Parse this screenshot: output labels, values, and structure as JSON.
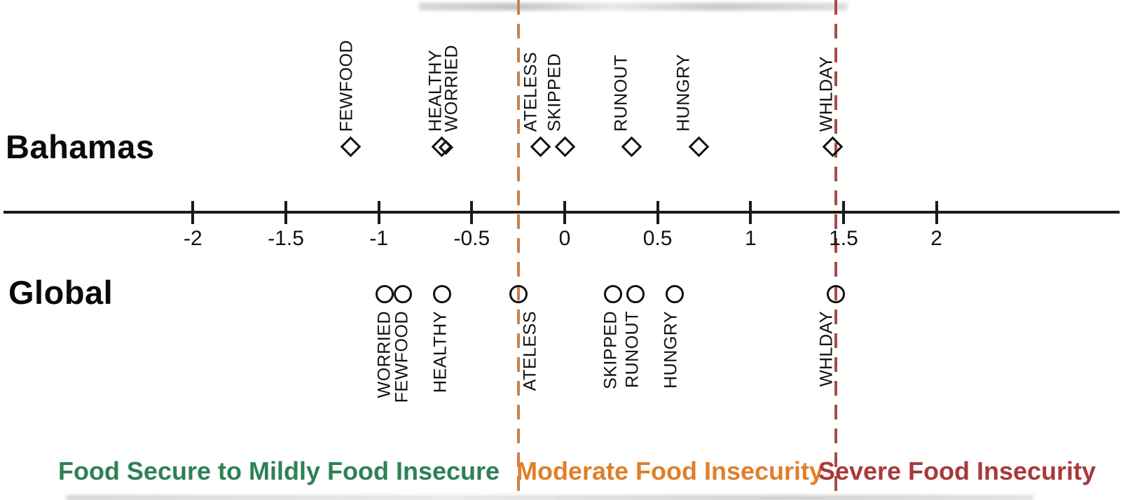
{
  "rows": {
    "bahamas": {
      "label": "Bahamas"
    },
    "global": {
      "label": "Global"
    }
  },
  "axis": {
    "min": -3,
    "max": 3,
    "ticks": [
      {
        "value": -2,
        "label": "-2"
      },
      {
        "value": -1.5,
        "label": "-1.5"
      },
      {
        "value": -1,
        "label": "-1"
      },
      {
        "value": -0.5,
        "label": "-0.5"
      },
      {
        "value": 0,
        "label": "0"
      },
      {
        "value": 0.5,
        "label": "0.5"
      },
      {
        "value": 1,
        "label": "1"
      },
      {
        "value": 1.5,
        "label": "1.5"
      },
      {
        "value": 2,
        "label": "2"
      }
    ]
  },
  "thresholds": {
    "moderate": {
      "value": -0.25,
      "color": "#C8824F"
    },
    "severe": {
      "value": 1.46,
      "color": "#A84A45"
    }
  },
  "zones": [
    {
      "label": "Food Secure to Mildly Food Insecure",
      "color": "#2E8155"
    },
    {
      "label": "Moderate Food Insecurity",
      "color": "#E07F2A"
    },
    {
      "label": "Severe Food Insecurity",
      "color": "#A8393B"
    }
  ],
  "chart_data": {
    "type": "scatter",
    "xlim": [
      -3,
      3
    ],
    "grid": false,
    "threshold_lines": [
      {
        "value": -0.25,
        "style": "dashed",
        "color": "#C8824F"
      },
      {
        "value": 1.46,
        "style": "dashed",
        "color": "#A84A45"
      }
    ],
    "series": [
      {
        "name": "Bahamas",
        "marker": "diamond",
        "points": [
          {
            "item": "FEWFOOD",
            "value": -1.15
          },
          {
            "item": "HEALTHY",
            "value": -0.66
          },
          {
            "item": "WORRIED",
            "value": -0.64
          },
          {
            "item": "ATELESS",
            "value": -0.13
          },
          {
            "item": "SKIPPED",
            "value": 0.0
          },
          {
            "item": "RUNOUT",
            "value": 0.36
          },
          {
            "item": "HUNGRY",
            "value": 0.72
          },
          {
            "item": "WHLDAY",
            "value": 1.44
          }
        ]
      },
      {
        "name": "Global",
        "marker": "circle",
        "points": [
          {
            "item": "WORRIED",
            "value": -0.97
          },
          {
            "item": "FEWFOOD",
            "value": -0.87
          },
          {
            "item": "HEALTHY",
            "value": -0.66
          },
          {
            "item": "ATELESS",
            "value": -0.25
          },
          {
            "item": "SKIPPED",
            "value": 0.26
          },
          {
            "item": "RUNOUT",
            "value": 0.38
          },
          {
            "item": "HUNGRY",
            "value": 0.59
          },
          {
            "item": "WHLDAY",
            "value": 1.46
          }
        ]
      }
    ]
  }
}
